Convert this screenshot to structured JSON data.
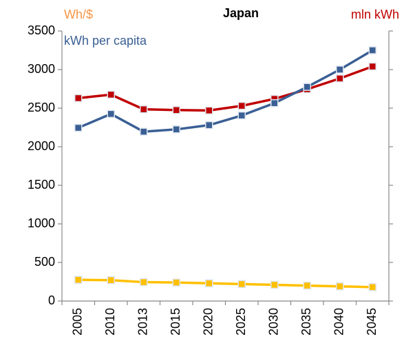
{
  "chart_data": {
    "type": "line",
    "title": "Japan",
    "categories": [
      "2005",
      "2010",
      "2013",
      "2015",
      "2020",
      "2025",
      "2030",
      "2035",
      "2040",
      "2045"
    ],
    "series": [
      {
        "name": "kWh per capita",
        "color": "#3a5f94",
        "values": [
          2245,
          2425,
          2195,
          2225,
          2280,
          2405,
          2565,
          2775,
          3000,
          3250
        ]
      },
      {
        "name": "mln kWh",
        "color": "#c00000",
        "values": [
          2630,
          2675,
          2485,
          2475,
          2470,
          2530,
          2620,
          2745,
          2885,
          3040
        ]
      },
      {
        "name": "Wh/$",
        "color": "#ffc000",
        "values": [
          275,
          270,
          245,
          240,
          230,
          220,
          210,
          200,
          190,
          180
        ]
      }
    ],
    "ylim": [
      0,
      3500
    ],
    "yticks": [
      0,
      500,
      1000,
      1500,
      2000,
      2500,
      3000,
      3500
    ],
    "grid": false
  }
}
